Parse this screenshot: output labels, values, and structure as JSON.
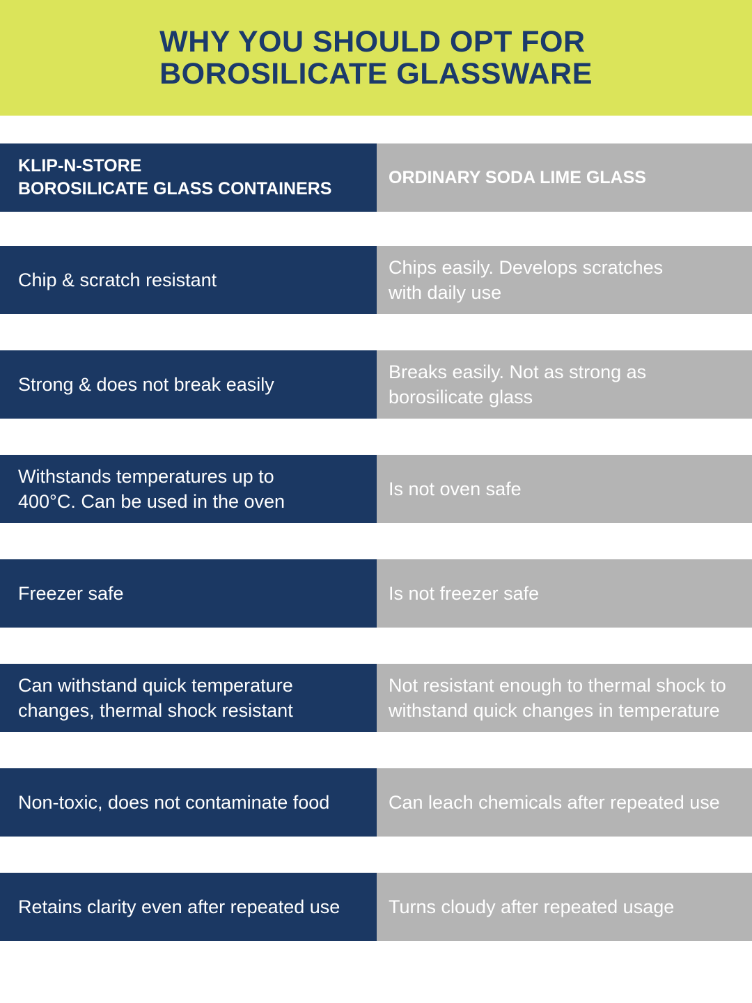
{
  "title": [
    "WHY YOU SHOULD OPT FOR",
    "BOROSILICATE GLASSWARE"
  ],
  "colors": {
    "banner": "#dbe45a",
    "title": "#1b3a6b",
    "left_column": "#1b3863",
    "right_column": "#b4b4b4"
  },
  "header": {
    "left": [
      "KLIP-N-STORE",
      "BOROSILICATE GLASS CONTAINERS"
    ],
    "right": "ORDINARY SODA LIME GLASS"
  },
  "rows": [
    {
      "left": [
        "Chip & scratch resistant"
      ],
      "right": [
        "Chips easily. Develops scratches",
        "with daily use"
      ]
    },
    {
      "left": [
        "Strong & does not break easily"
      ],
      "right": [
        "Breaks easily. Not as strong as",
        "borosilicate glass"
      ]
    },
    {
      "left": [
        "Withstands temperatures up to",
        "400°C. Can be used in the oven"
      ],
      "right": [
        "Is not oven safe"
      ]
    },
    {
      "left": [
        "Freezer safe"
      ],
      "right": [
        "Is not freezer safe"
      ]
    },
    {
      "left": [
        "Can withstand quick temperature",
        "changes, thermal shock resistant"
      ],
      "right": [
        "Not resistant enough to thermal shock to",
        "withstand quick changes in temperature"
      ]
    },
    {
      "left": [
        "Non-toxic, does not contaminate food"
      ],
      "right": [
        "Can leach chemicals after repeated use"
      ]
    },
    {
      "left": [
        "Retains clarity even after repeated use"
      ],
      "right": [
        "Turns cloudy after repeated usage"
      ]
    }
  ]
}
